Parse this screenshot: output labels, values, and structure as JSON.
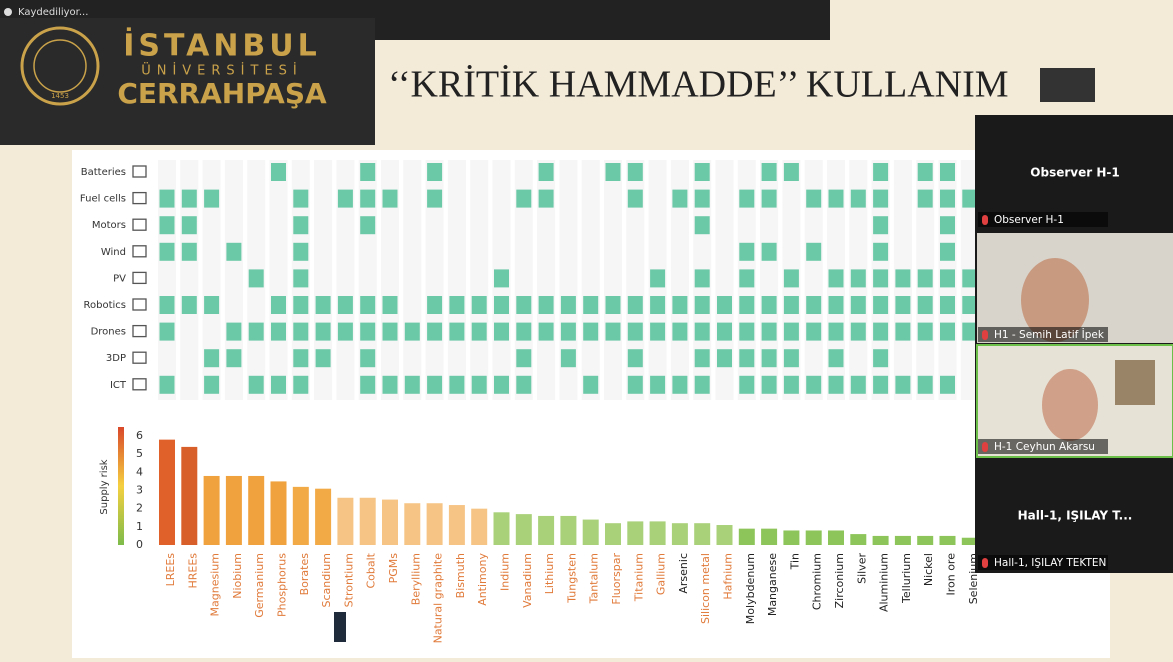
{
  "recording_status": "Kaydediliyor...",
  "logo": {
    "line1": "İSTANBUL",
    "line2": "ÜNİVERSİTESİ",
    "line3": "CERRAHPAŞA",
    "seal_year": "1453"
  },
  "slide_title": "‘‘KRİTİK HAMMADDE’’ KULLANIM",
  "chart_data": {
    "type": "bar",
    "ylabel": "Supply risk",
    "categories": [
      "LREEs",
      "HREEs",
      "Magnesium",
      "Niobium",
      "Germanium",
      "Phosphorus",
      "Borates",
      "Scandium",
      "Strontium",
      "Cobalt",
      "PGMs",
      "Beryllium",
      "Natural graphite",
      "Bismuth",
      "Antimony",
      "Indium",
      "Vanadium",
      "Lithium",
      "Tungsten",
      "Tantalum",
      "Fluorspar",
      "Titanium",
      "Gallium",
      "Arsenic",
      "Silicon metal",
      "Hafnium",
      "Molybdenum",
      "Manganese",
      "Tin",
      "Chromium",
      "Zirconium",
      "Silver",
      "Aluminium",
      "Tellurium",
      "Nickel",
      "Iron ore",
      "Selenium"
    ],
    "values": [
      5.8,
      5.4,
      3.8,
      3.8,
      3.8,
      3.5,
      3.2,
      3.1,
      2.6,
      2.6,
      2.5,
      2.3,
      2.3,
      2.2,
      2.0,
      1.8,
      1.7,
      1.6,
      1.6,
      1.4,
      1.2,
      1.3,
      1.3,
      1.2,
      1.2,
      1.1,
      0.9,
      0.9,
      0.8,
      0.8,
      0.8,
      0.6,
      0.5,
      0.5,
      0.5,
      0.5,
      0.4
    ],
    "colors": [
      "#e0622a",
      "#d95f2a",
      "#f0a23e",
      "#f0a23e",
      "#f0a23e",
      "#f0a23e",
      "#f2aa46",
      "#f2aa46",
      "#f6c586",
      "#f6c586",
      "#f6c586",
      "#f6c586",
      "#f6c586",
      "#f6c586",
      "#f6c586",
      "#a9d17a",
      "#a9d17a",
      "#a9d17a",
      "#a9d17a",
      "#a9d17a",
      "#a9d17a",
      "#a9d17a",
      "#a9d17a",
      "#a9d17a",
      "#a9d17a",
      "#a9d17a",
      "#8dc55a",
      "#8dc55a",
      "#8dc55a",
      "#8dc55a",
      "#8dc55a",
      "#8dc55a",
      "#8dc55a",
      "#8dc55a",
      "#8dc55a",
      "#8dc55a",
      "#8dc55a"
    ],
    "label_colors": [
      "#e07a3a",
      "#e07a3a",
      "#e07a3a",
      "#e07a3a",
      "#e07a3a",
      "#e07a3a",
      "#e07a3a",
      "#e07a3a",
      "#e07a3a",
      "#e07a3a",
      "#e07a3a",
      "#e07a3a",
      "#e07a3a",
      "#e07a3a",
      "#e07a3a",
      "#e07a3a",
      "#e07a3a",
      "#e07a3a",
      "#e07a3a",
      "#e07a3a",
      "#e07a3a",
      "#e07a3a",
      "#e07a3a",
      "#222222",
      "#e07a3a",
      "#e07a3a",
      "#222222",
      "#222222",
      "#222222",
      "#222222",
      "#222222",
      "#222222",
      "#222222",
      "#222222",
      "#222222",
      "#222222",
      "#222222"
    ],
    "ylim": [
      0,
      6
    ],
    "yticks": [
      0,
      1,
      2,
      3,
      4,
      5,
      6
    ],
    "matrix": {
      "color": "#6cc9a8",
      "rows": [
        {
          "name": "Batteries",
          "cells": [
            5,
            9,
            12,
            17,
            20,
            21,
            24,
            27,
            28,
            32,
            34,
            35
          ]
        },
        {
          "name": "Fuel cells",
          "cells": [
            0,
            1,
            2,
            6,
            8,
            9,
            10,
            12,
            16,
            17,
            21,
            23,
            24,
            26,
            27,
            29,
            30,
            31,
            32,
            34,
            35,
            36
          ]
        },
        {
          "name": "Motors",
          "cells": [
            0,
            1,
            6,
            9,
            24,
            32,
            35
          ]
        },
        {
          "name": "Wind",
          "cells": [
            0,
            1,
            3,
            6,
            26,
            27,
            29,
            32,
            35
          ]
        },
        {
          "name": "PV",
          "cells": [
            4,
            6,
            15,
            22,
            24,
            26,
            28,
            30,
            31,
            32,
            33,
            34,
            35,
            36
          ]
        },
        {
          "name": "Robotics",
          "cells": [
            0,
            1,
            2,
            5,
            6,
            7,
            8,
            9,
            10,
            12,
            13,
            14,
            15,
            16,
            17,
            18,
            19,
            20,
            21,
            22,
            23,
            24,
            25,
            26,
            27,
            28,
            29,
            30,
            31,
            32,
            33,
            34,
            35,
            36
          ]
        },
        {
          "name": "Drones",
          "cells": [
            0,
            3,
            4,
            5,
            6,
            7,
            8,
            9,
            10,
            11,
            12,
            13,
            14,
            15,
            16,
            17,
            18,
            19,
            20,
            21,
            22,
            23,
            24,
            25,
            26,
            27,
            28,
            29,
            30,
            31,
            32,
            33,
            34,
            35,
            36
          ]
        },
        {
          "name": "3DP",
          "cells": [
            2,
            3,
            6,
            7,
            9,
            16,
            18,
            21,
            24,
            25,
            26,
            27,
            28,
            30,
            32
          ]
        },
        {
          "name": "ICT",
          "cells": [
            0,
            2,
            4,
            5,
            6,
            9,
            10,
            11,
            12,
            13,
            14,
            15,
            16,
            19,
            21,
            22,
            23,
            24,
            26,
            27,
            28,
            29,
            30,
            31,
            32,
            33,
            34,
            35
          ]
        }
      ]
    }
  },
  "participants": [
    {
      "title": "Observer H-1",
      "name": "Observer H-1"
    },
    {
      "name": "H1 - Semih Latif İpek"
    },
    {
      "name": "H-1 Ceyhun Akarsu"
    },
    {
      "title": "Hall-1, IŞILAY T...",
      "name": "Hall-1, IŞILAY TEKTEN"
    }
  ]
}
